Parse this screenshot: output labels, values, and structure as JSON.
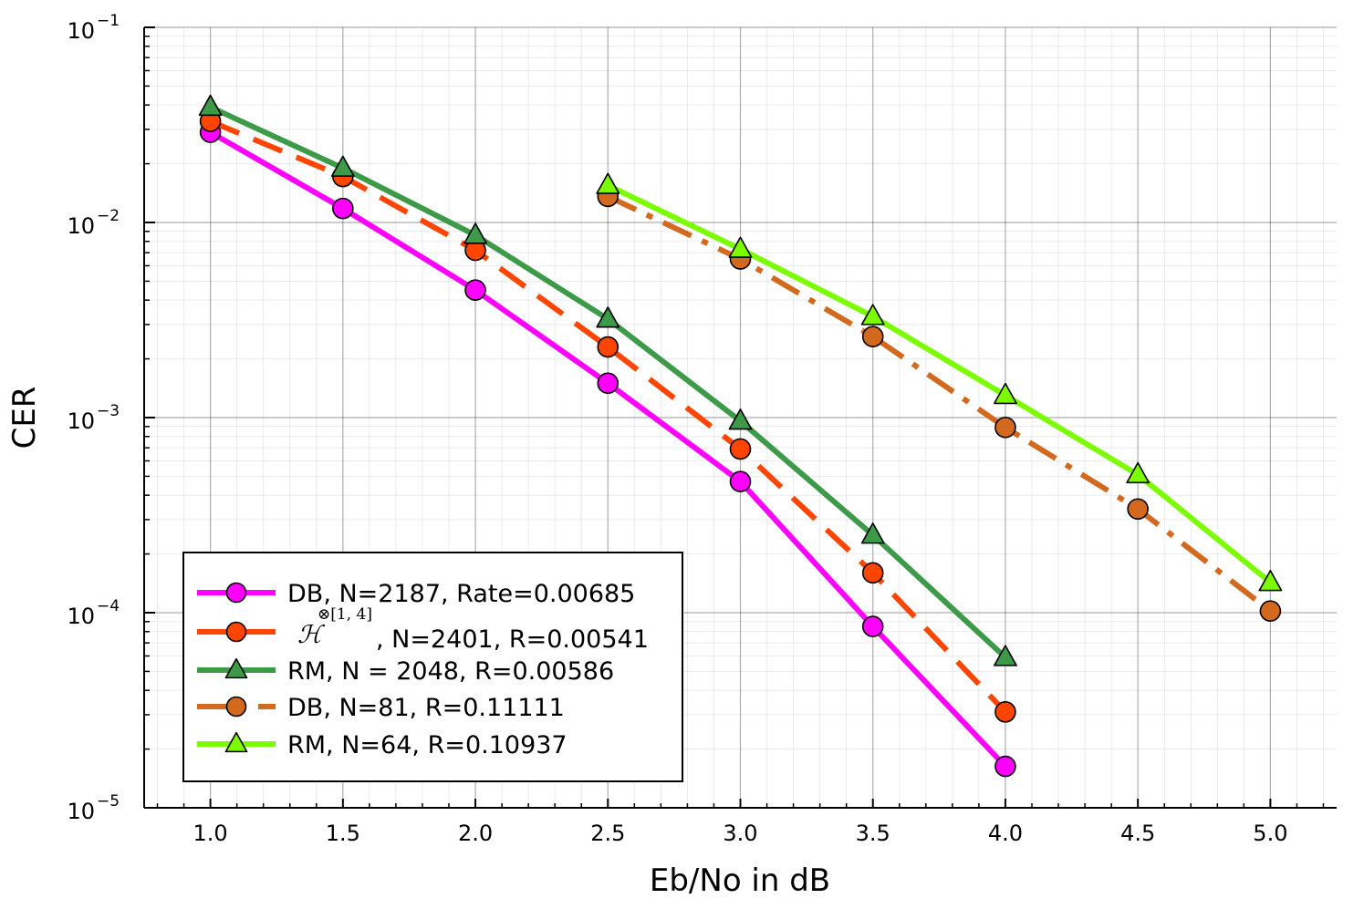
{
  "chart_data": {
    "type": "line",
    "title": "",
    "xlabel": "Eb/No in dB",
    "ylabel": "CER",
    "xlim": [
      0.75,
      5.25
    ],
    "ylim": [
      1e-05,
      0.1
    ],
    "yscale": "log",
    "grid": true,
    "legend_position": "bottom-left",
    "x_ticks": [
      "1.0",
      "1.5",
      "2.0",
      "2.5",
      "3.0",
      "3.5",
      "4.0",
      "4.5",
      "5.0"
    ],
    "y_ticks": [
      {
        "base": "10",
        "exp": "−5"
      },
      {
        "base": "10",
        "exp": "−4"
      },
      {
        "base": "10",
        "exp": "−3"
      },
      {
        "base": "10",
        "exp": "−2"
      },
      {
        "base": "10",
        "exp": "−1"
      }
    ],
    "series": [
      {
        "name": "DB, N=2187, Rate=0.00685",
        "color": "#ff00ff",
        "dash": "solid",
        "marker": "circle",
        "x": [
          1.0,
          1.5,
          2.0,
          2.5,
          3.0,
          3.5,
          4.0
        ],
        "values": [
          0.029,
          0.0118,
          0.0045,
          0.0015,
          0.00047,
          8.5e-05,
          1.63e-05
        ]
      },
      {
        "name_symbol": "ℋ",
        "name_sup": "⊗[1, 4]",
        "name_rest": ", N=2401, R=0.00541",
        "color": "#ff4500",
        "dash": "dash",
        "marker": "circle",
        "x": [
          1.0,
          1.5,
          2.0,
          2.5,
          3.0,
          3.5,
          4.0
        ],
        "values": [
          0.033,
          0.0172,
          0.0072,
          0.0023,
          0.00069,
          0.00016,
          3.1e-05
        ]
      },
      {
        "name": "RM, N = 2048, R=0.00586",
        "color": "#3c9a48",
        "dash": "solid",
        "marker": "triangle",
        "x": [
          1.0,
          1.5,
          2.0,
          2.5,
          3.0,
          3.5,
          4.0
        ],
        "values": [
          0.039,
          0.019,
          0.0086,
          0.0032,
          0.00096,
          0.00025,
          5.9e-05
        ]
      },
      {
        "name": "DB, N=81, R=0.11111",
        "color": "#d2691e",
        "dash": "dashdot",
        "marker": "circle",
        "x": [
          2.5,
          3.0,
          3.5,
          4.0,
          4.5,
          5.0
        ],
        "values": [
          0.0136,
          0.0065,
          0.0026,
          0.00089,
          0.00034,
          0.000102
        ]
      },
      {
        "name": "RM, N=64, R=0.10937",
        "color": "#7cfc00",
        "dash": "solid",
        "marker": "triangle",
        "x": [
          2.5,
          3.0,
          3.5,
          4.0,
          4.5,
          5.0
        ],
        "values": [
          0.0155,
          0.0073,
          0.0033,
          0.0013,
          0.00051,
          0.000143
        ]
      }
    ]
  }
}
